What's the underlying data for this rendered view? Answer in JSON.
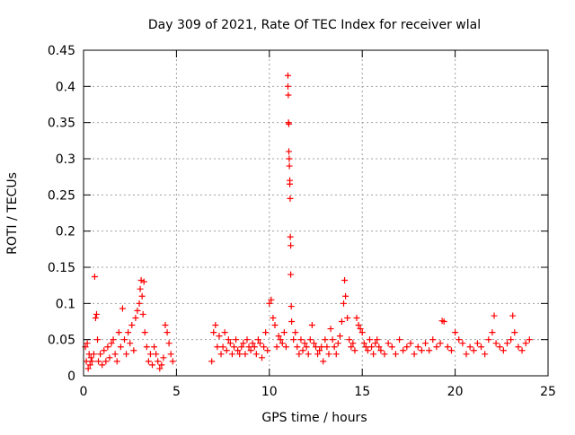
{
  "chart_data": {
    "type": "scatter",
    "title": "Day 309 of 2021, Rate Of TEC Index for receiver wlal",
    "xlabel": "GPS time / hours",
    "ylabel": "ROTI / TECUs",
    "xlim": [
      0,
      25
    ],
    "ylim": [
      0,
      0.45
    ],
    "xticks": [
      "0",
      "5",
      "10",
      "15",
      "20",
      "25"
    ],
    "yticks": [
      "0",
      "0.05",
      "0.1",
      "0.15",
      "0.2",
      "0.25",
      "0.3",
      "0.35",
      "0.4",
      "0.45"
    ],
    "grid": true,
    "legend": "none",
    "marker": "+",
    "color": "#ff0000",
    "series": [
      {
        "x": [
          0.1,
          0.15,
          0.2,
          0.25,
          0.3,
          0.35,
          0.4,
          0.45,
          0.55,
          0.6,
          0.65,
          0.7,
          0.75,
          0.8,
          0.9,
          1.0,
          1.1,
          1.2,
          1.3,
          1.4,
          1.5,
          1.6,
          1.7,
          1.8,
          1.9,
          2.0,
          2.1,
          2.2,
          2.3,
          2.4,
          2.5,
          2.6,
          2.7,
          2.8,
          2.9,
          3.0,
          3.05,
          3.1,
          3.15,
          3.2,
          3.25,
          3.3,
          3.4,
          3.5,
          3.6,
          3.7,
          3.8,
          3.9,
          4.0,
          4.1,
          4.2,
          4.3,
          4.4,
          4.5,
          4.6,
          4.7,
          4.8,
          6.9,
          7.0,
          7.1,
          7.2,
          7.3,
          7.4,
          7.5,
          7.6,
          7.7,
          7.8,
          7.9,
          8.0,
          8.1,
          8.2,
          8.3,
          8.4,
          8.5,
          8.6,
          8.7,
          8.8,
          8.9,
          9.0,
          9.1,
          9.2,
          9.3,
          9.4,
          9.5,
          9.6,
          9.7,
          9.8,
          9.9,
          10.0,
          10.1,
          10.2,
          10.3,
          10.4,
          10.5,
          10.6,
          10.7,
          10.8,
          10.9,
          11.0,
          11.0,
          11.02,
          11.03,
          11.05,
          11.05,
          11.07,
          11.08,
          11.1,
          11.1,
          11.12,
          11.13,
          11.15,
          11.15,
          11.18,
          11.2,
          11.3,
          11.4,
          11.5,
          11.6,
          11.7,
          11.8,
          11.9,
          12.0,
          12.1,
          12.2,
          12.3,
          12.4,
          12.5,
          12.6,
          12.7,
          12.8,
          12.9,
          13.0,
          13.1,
          13.2,
          13.3,
          13.4,
          13.5,
          13.6,
          13.7,
          13.8,
          13.9,
          14.0,
          14.05,
          14.1,
          14.2,
          14.3,
          14.4,
          14.5,
          14.6,
          14.7,
          14.8,
          14.9,
          15.0,
          15.1,
          15.2,
          15.3,
          15.4,
          15.5,
          15.6,
          15.7,
          15.8,
          15.9,
          16.0,
          16.2,
          16.4,
          16.6,
          16.8,
          17.0,
          17.2,
          17.4,
          17.6,
          17.8,
          18.0,
          18.2,
          18.4,
          18.6,
          18.8,
          19.0,
          19.2,
          19.3,
          19.4,
          19.6,
          19.8,
          20.0,
          20.2,
          20.4,
          20.6,
          20.8,
          21.0,
          21.2,
          21.4,
          21.6,
          21.8,
          22.0,
          22.1,
          22.2,
          22.4,
          22.6,
          22.8,
          23.0,
          23.1,
          23.2,
          23.4,
          23.6,
          23.8,
          24.0
        ],
        "y": [
          0.04,
          0.02,
          0.045,
          0.01,
          0.03,
          0.015,
          0.025,
          0.02,
          0.03,
          0.137,
          0.08,
          0.085,
          0.05,
          0.02,
          0.03,
          0.015,
          0.035,
          0.02,
          0.04,
          0.025,
          0.045,
          0.05,
          0.03,
          0.02,
          0.06,
          0.04,
          0.093,
          0.05,
          0.03,
          0.06,
          0.045,
          0.07,
          0.035,
          0.08,
          0.09,
          0.1,
          0.12,
          0.132,
          0.11,
          0.085,
          0.13,
          0.06,
          0.04,
          0.02,
          0.03,
          0.015,
          0.04,
          0.03,
          0.02,
          0.01,
          0.015,
          0.025,
          0.07,
          0.06,
          0.045,
          0.03,
          0.02,
          0.02,
          0.06,
          0.07,
          0.04,
          0.055,
          0.03,
          0.04,
          0.06,
          0.035,
          0.05,
          0.045,
          0.03,
          0.04,
          0.05,
          0.035,
          0.03,
          0.04,
          0.045,
          0.03,
          0.05,
          0.04,
          0.035,
          0.045,
          0.04,
          0.03,
          0.05,
          0.045,
          0.025,
          0.04,
          0.06,
          0.035,
          0.1,
          0.105,
          0.08,
          0.07,
          0.04,
          0.055,
          0.05,
          0.045,
          0.06,
          0.04,
          0.415,
          0.4,
          0.388,
          0.35,
          0.348,
          0.31,
          0.3,
          0.29,
          0.27,
          0.265,
          0.245,
          0.192,
          0.18,
          0.14,
          0.096,
          0.075,
          0.05,
          0.06,
          0.04,
          0.03,
          0.05,
          0.035,
          0.045,
          0.04,
          0.03,
          0.05,
          0.07,
          0.045,
          0.04,
          0.03,
          0.035,
          0.04,
          0.02,
          0.05,
          0.04,
          0.03,
          0.065,
          0.05,
          0.04,
          0.03,
          0.045,
          0.055,
          0.075,
          0.1,
          0.132,
          0.11,
          0.08,
          0.05,
          0.04,
          0.045,
          0.035,
          0.08,
          0.07,
          0.065,
          0.06,
          0.045,
          0.04,
          0.035,
          0.05,
          0.04,
          0.03,
          0.045,
          0.05,
          0.04,
          0.035,
          0.03,
          0.045,
          0.04,
          0.03,
          0.05,
          0.035,
          0.04,
          0.045,
          0.03,
          0.04,
          0.035,
          0.045,
          0.035,
          0.05,
          0.04,
          0.045,
          0.076,
          0.075,
          0.04,
          0.035,
          0.06,
          0.05,
          0.045,
          0.03,
          0.04,
          0.035,
          0.045,
          0.04,
          0.03,
          0.05,
          0.06,
          0.083,
          0.045,
          0.04,
          0.035,
          0.045,
          0.05,
          0.083,
          0.06,
          0.04,
          0.035,
          0.045,
          0.05
        ]
      }
    ]
  }
}
